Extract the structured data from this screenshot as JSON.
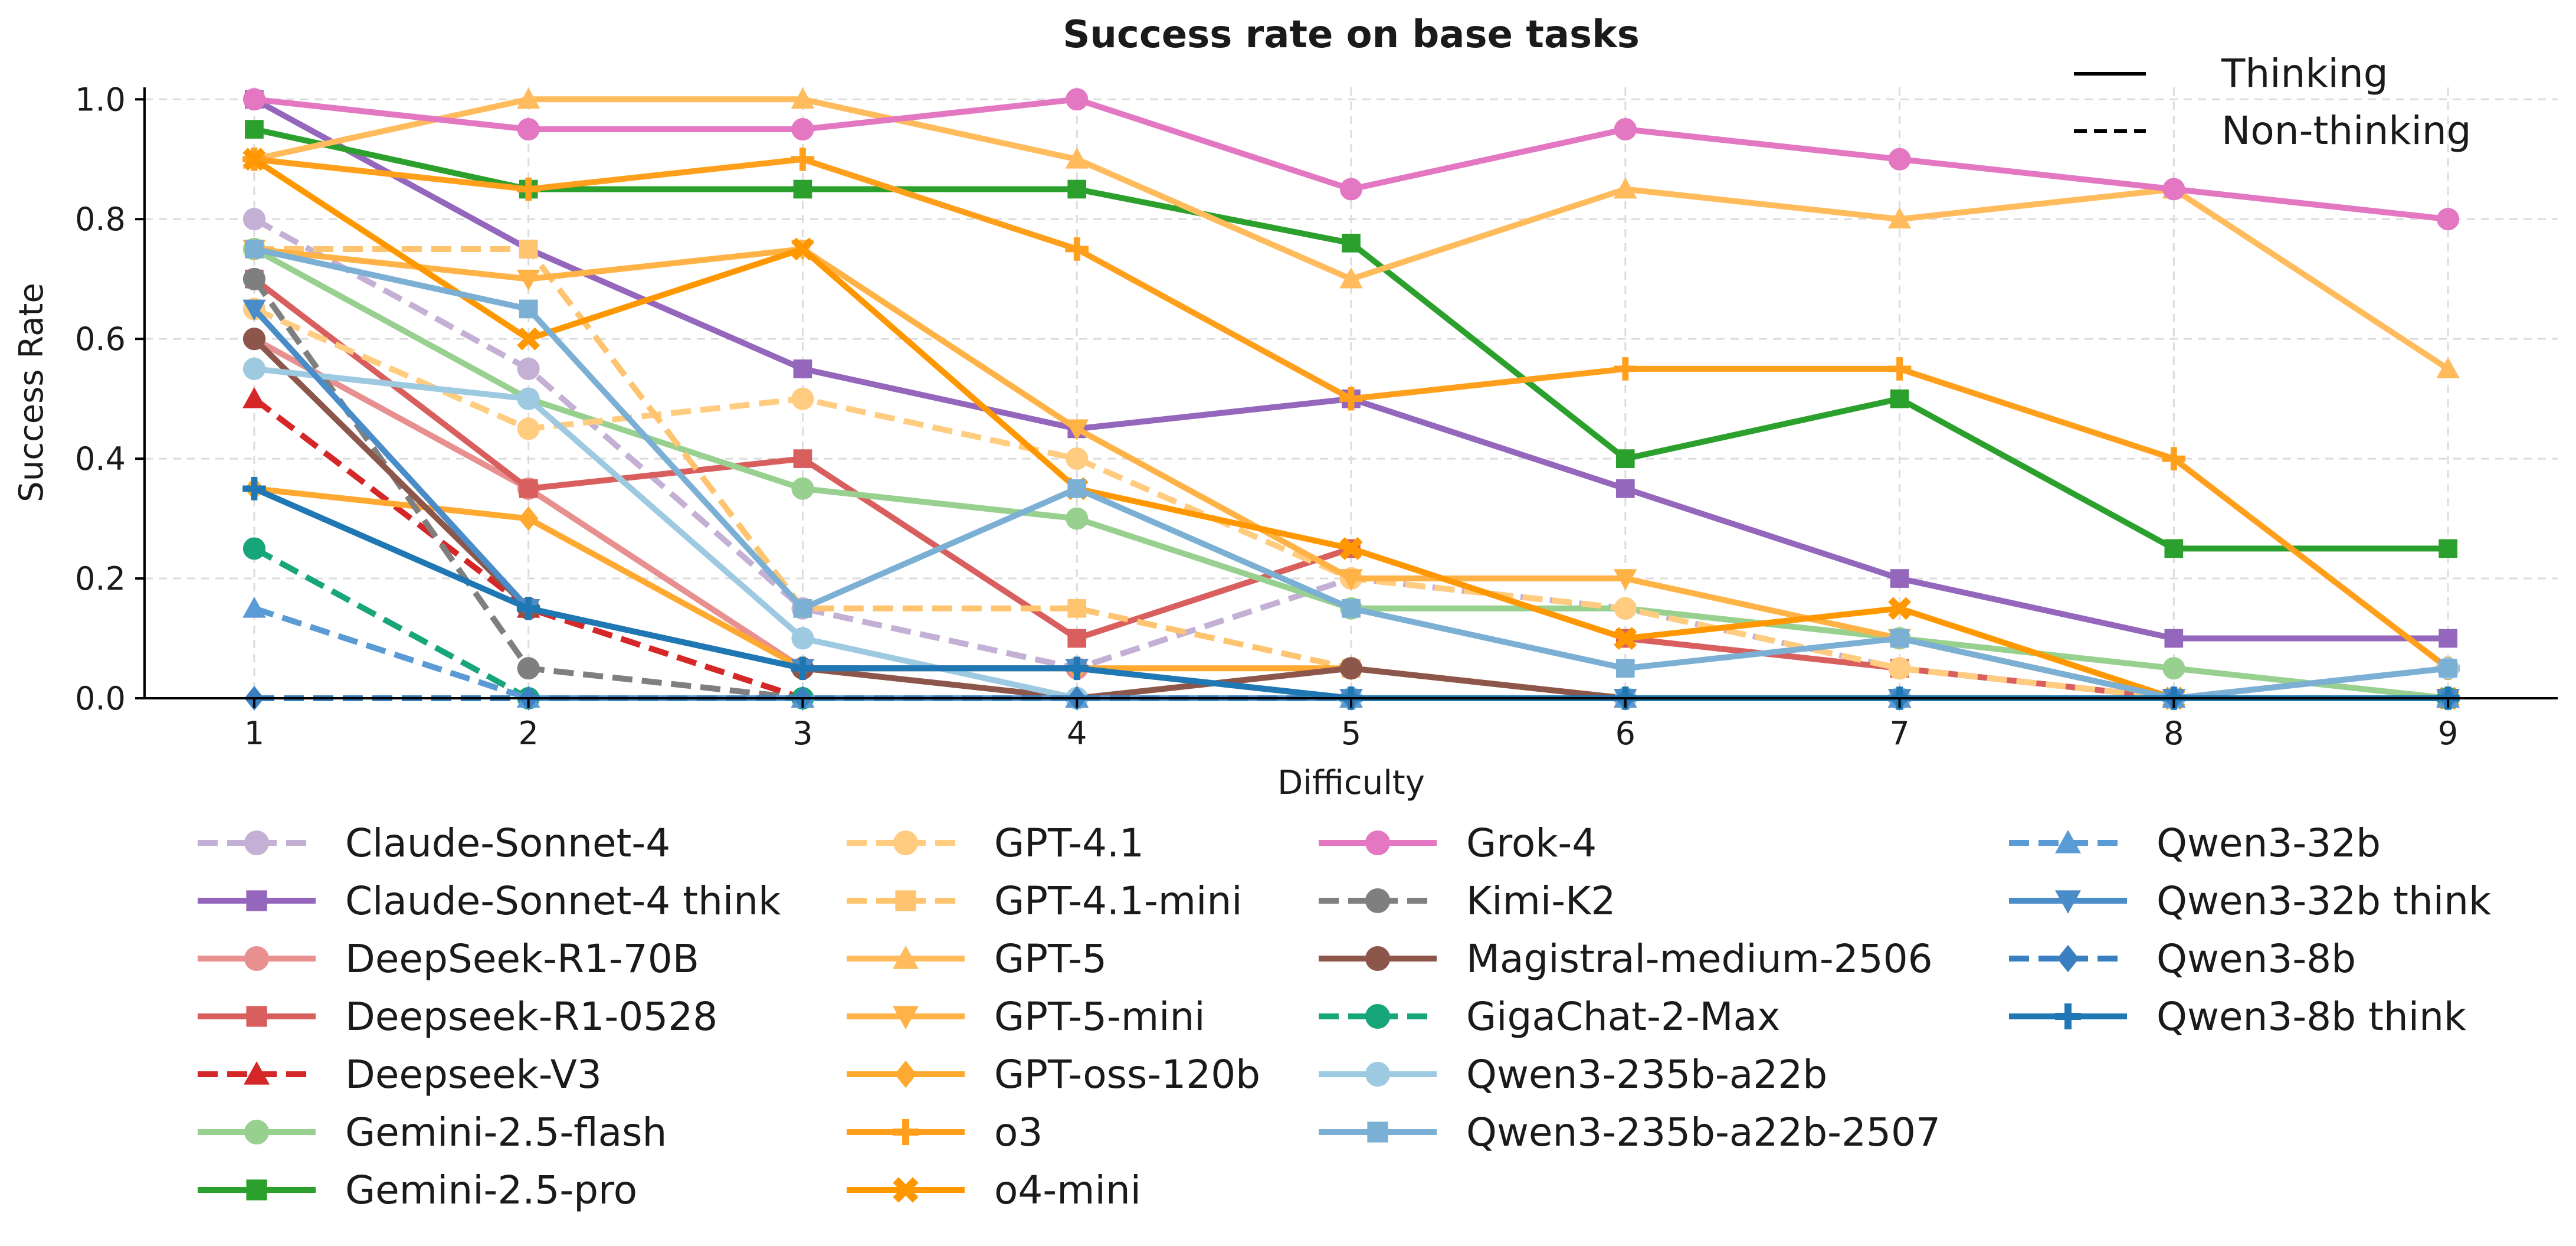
{
  "chart_data": {
    "type": "line",
    "title": "Success rate on base tasks",
    "xlabel": "Difficulty",
    "ylabel": "Success Rate",
    "x": [
      1,
      2,
      3,
      4,
      5,
      6,
      7,
      8,
      9
    ],
    "xticks": [
      "1",
      "2",
      "3",
      "4",
      "5",
      "6",
      "7",
      "8",
      "9"
    ],
    "yticks": [
      "0.0",
      "0.2",
      "0.4",
      "0.6",
      "0.8",
      "1.0"
    ],
    "xlim": [
      0.6,
      9.4
    ],
    "ylim": [
      0,
      1.02
    ],
    "grid": true,
    "style_legend": [
      {
        "label": "Thinking",
        "dash": "solid"
      },
      {
        "label": "Non-thinking",
        "dash": "dashed"
      }
    ],
    "style_legend_position": "top-right",
    "legend_position": "below",
    "series": [
      {
        "name": "Claude-Sonnet-4",
        "color": "#c5b0d5",
        "dash": "dashed",
        "marker": "circle",
        "values": [
          0.8,
          0.55,
          0.15,
          0.05,
          0.2,
          0.15,
          0.05,
          0.0,
          0.0
        ]
      },
      {
        "name": "Claude-Sonnet-4 think",
        "color": "#9467bd",
        "dash": "solid",
        "marker": "square",
        "values": [
          1.0,
          0.75,
          0.55,
          0.45,
          0.5,
          0.35,
          0.2,
          0.1,
          0.1
        ]
      },
      {
        "name": "DeepSeek-R1-70B",
        "color": "#e88f8f",
        "dash": "solid",
        "marker": "circle",
        "values": [
          0.6,
          0.35,
          0.05,
          0.05,
          0.0,
          0.0,
          0.0,
          0.0,
          0.0
        ]
      },
      {
        "name": "Deepseek-R1-0528",
        "color": "#d95f5f",
        "dash": "solid",
        "marker": "square",
        "values": [
          0.7,
          0.35,
          0.4,
          0.1,
          0.25,
          0.1,
          0.05,
          0.0,
          0.0
        ]
      },
      {
        "name": "Deepseek-V3",
        "color": "#d62728",
        "dash": "dashed",
        "marker": "triangle-up",
        "values": [
          0.5,
          0.15,
          0.0,
          0.0,
          0.0,
          0.0,
          0.0,
          0.0,
          0.0
        ]
      },
      {
        "name": "Gemini-2.5-flash",
        "color": "#98d08f",
        "dash": "solid",
        "marker": "circle",
        "values": [
          0.75,
          0.5,
          0.35,
          0.3,
          0.15,
          0.15,
          0.1,
          0.05,
          0.0
        ]
      },
      {
        "name": "Gemini-2.5-pro",
        "color": "#2ca02c",
        "dash": "solid",
        "marker": "square",
        "values": [
          0.95,
          0.85,
          0.85,
          0.85,
          0.76,
          0.4,
          0.5,
          0.25,
          0.25
        ]
      },
      {
        "name": "GPT-4.1",
        "color": "#ffcc80",
        "dash": "dashed",
        "marker": "circle",
        "values": [
          0.65,
          0.45,
          0.5,
          0.4,
          0.2,
          0.15,
          0.05,
          0.0,
          0.0
        ]
      },
      {
        "name": "GPT-4.1-mini",
        "color": "#ffc470",
        "dash": "dashed",
        "marker": "square",
        "values": [
          0.75,
          0.75,
          0.15,
          0.15,
          0.05,
          0.0,
          0.0,
          0.0,
          0.0
        ]
      },
      {
        "name": "GPT-5",
        "color": "#ffbb5c",
        "dash": "solid",
        "marker": "triangle-up",
        "values": [
          0.9,
          1.0,
          1.0,
          0.9,
          0.7,
          0.85,
          0.8,
          0.85,
          0.55
        ]
      },
      {
        "name": "GPT-5-mini",
        "color": "#ffb347",
        "dash": "solid",
        "marker": "triangle-down",
        "values": [
          0.75,
          0.7,
          0.75,
          0.45,
          0.2,
          0.2,
          0.1,
          0.0,
          0.0
        ]
      },
      {
        "name": "GPT-oss-120b",
        "color": "#ffa930",
        "dash": "solid",
        "marker": "diamond",
        "values": [
          0.35,
          0.3,
          0.05,
          0.05,
          0.05,
          0.0,
          0.0,
          0.0,
          0.0
        ]
      },
      {
        "name": "o3",
        "color": "#ff9f1c",
        "dash": "solid",
        "marker": "plus",
        "values": [
          0.9,
          0.85,
          0.9,
          0.75,
          0.5,
          0.55,
          0.55,
          0.4,
          0.05
        ]
      },
      {
        "name": "o4-mini",
        "color": "#ff9800",
        "dash": "solid",
        "marker": "x",
        "values": [
          0.9,
          0.6,
          0.75,
          0.35,
          0.25,
          0.1,
          0.15,
          0.0,
          0.0
        ]
      },
      {
        "name": "Grok-4",
        "color": "#e377c2",
        "dash": "solid",
        "marker": "circle",
        "values": [
          1.0,
          0.95,
          0.95,
          1.0,
          0.85,
          0.95,
          0.9,
          0.85,
          0.8
        ]
      },
      {
        "name": "Kimi-K2",
        "color": "#7f7f7f",
        "dash": "dashed",
        "marker": "circle",
        "values": [
          0.7,
          0.05,
          0.0,
          0.0,
          0.0,
          0.0,
          0.0,
          0.0,
          0.0
        ]
      },
      {
        "name": "Magistral-medium-2506",
        "color": "#8c564b",
        "dash": "solid",
        "marker": "circle",
        "values": [
          0.6,
          0.15,
          0.05,
          0.0,
          0.05,
          0.0,
          0.0,
          0.0,
          0.0
        ]
      },
      {
        "name": "GigaChat-2-Max",
        "color": "#17a57a",
        "dash": "dashed",
        "marker": "circle",
        "values": [
          0.25,
          0.0,
          0.0,
          0.0,
          0.0,
          0.0,
          0.0,
          0.0,
          0.0
        ]
      },
      {
        "name": "Qwen3-235b-a22b",
        "color": "#9ecae1",
        "dash": "solid",
        "marker": "circle",
        "values": [
          0.55,
          0.5,
          0.1,
          0.0,
          0.0,
          0.0,
          0.0,
          0.0,
          0.05
        ]
      },
      {
        "name": "Qwen3-235b-a22b-2507",
        "color": "#7bafd4",
        "dash": "solid",
        "marker": "square",
        "values": [
          0.75,
          0.65,
          0.15,
          0.35,
          0.15,
          0.05,
          0.1,
          0.0,
          0.05
        ]
      },
      {
        "name": "Qwen3-32b",
        "color": "#5b9bd5",
        "dash": "dashed",
        "marker": "triangle-up",
        "values": [
          0.15,
          0.0,
          0.0,
          0.0,
          0.0,
          0.0,
          0.0,
          0.0,
          0.0
        ]
      },
      {
        "name": "Qwen3-32b think",
        "color": "#4a8cc7",
        "dash": "solid",
        "marker": "triangle-down",
        "values": [
          0.65,
          0.15,
          0.05,
          0.05,
          0.0,
          0.0,
          0.0,
          0.0,
          0.0
        ]
      },
      {
        "name": "Qwen3-8b",
        "color": "#3a7fc0",
        "dash": "dashed",
        "marker": "diamond",
        "values": [
          0.0,
          0.0,
          0.0,
          0.0,
          0.0,
          0.0,
          0.0,
          0.0,
          0.0
        ]
      },
      {
        "name": "Qwen3-8b think",
        "color": "#1f77b4",
        "dash": "solid",
        "marker": "plus",
        "values": [
          0.35,
          0.15,
          0.05,
          0.05,
          0.0,
          0.0,
          0.0,
          0.0,
          0.0
        ]
      }
    ]
  }
}
